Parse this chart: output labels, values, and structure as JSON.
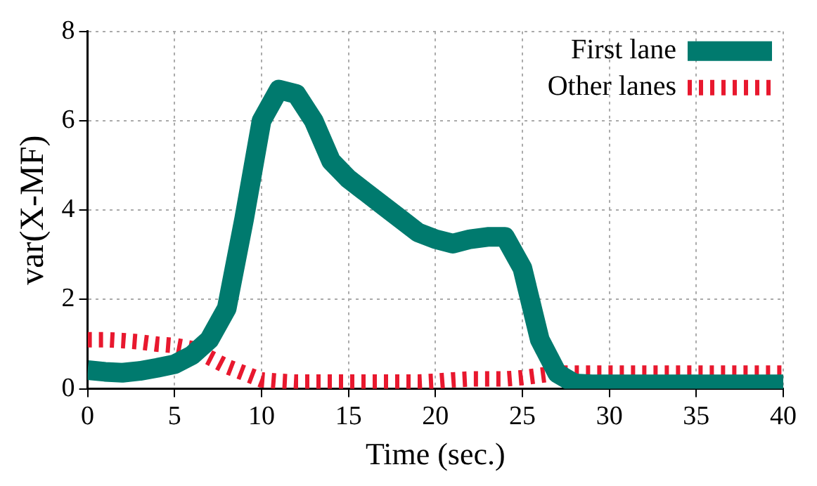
{
  "chart_data": {
    "type": "line",
    "xlabel": "Time (sec.)",
    "ylabel": "var(X-MF)",
    "x": [
      0,
      1,
      2,
      3,
      4,
      5,
      6,
      7,
      8,
      9,
      10,
      11,
      12,
      13,
      14,
      15,
      16,
      17,
      18,
      19,
      20,
      21,
      22,
      23,
      24,
      25,
      26,
      27,
      28,
      29,
      30,
      31,
      32,
      33,
      34,
      35,
      36,
      37,
      38,
      39,
      40
    ],
    "series": [
      {
        "name": "First lane",
        "color": "#007a6e",
        "line_style": "solid",
        "values": [
          0.42,
          0.38,
          0.36,
          0.4,
          0.47,
          0.55,
          0.75,
          1.1,
          1.8,
          3.8,
          6.0,
          6.7,
          6.6,
          6.0,
          5.1,
          4.7,
          4.4,
          4.1,
          3.8,
          3.5,
          3.35,
          3.25,
          3.35,
          3.4,
          3.4,
          2.7,
          1.1,
          0.35,
          0.12,
          0.1,
          0.1,
          0.1,
          0.1,
          0.1,
          0.1,
          0.1,
          0.1,
          0.1,
          0.1,
          0.1,
          0.1
        ]
      },
      {
        "name": "Other lanes",
        "color": "#e8182e",
        "line_style": "dashed",
        "values": [
          1.1,
          1.1,
          1.08,
          1.05,
          1.0,
          0.97,
          0.9,
          0.7,
          0.5,
          0.35,
          0.2,
          0.17,
          0.15,
          0.15,
          0.15,
          0.15,
          0.15,
          0.15,
          0.15,
          0.15,
          0.17,
          0.2,
          0.22,
          0.22,
          0.22,
          0.25,
          0.3,
          0.35,
          0.35,
          0.35,
          0.35,
          0.35,
          0.35,
          0.35,
          0.35,
          0.35,
          0.35,
          0.35,
          0.35,
          0.35,
          0.35
        ]
      }
    ],
    "xlim": [
      0,
      40
    ],
    "xticks": [
      0,
      5,
      10,
      15,
      20,
      25,
      30,
      35,
      40
    ],
    "ylim": [
      0,
      8
    ],
    "yticks": [
      0,
      2,
      4,
      6,
      8
    ],
    "grid": true,
    "legend": "top right",
    "marker": "none"
  }
}
